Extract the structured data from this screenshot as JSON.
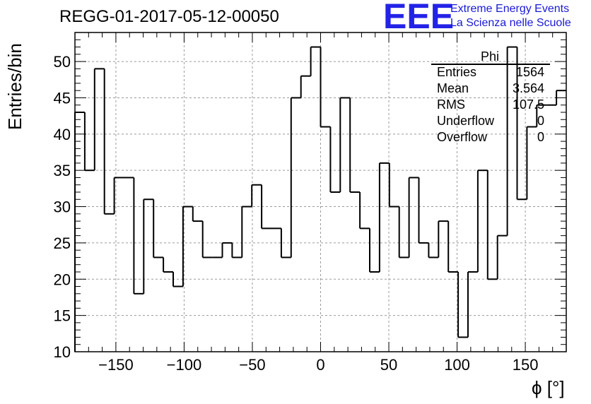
{
  "header": {
    "title": "REGG-01-2017-05-12-00050",
    "logo_text": "EEE",
    "logo_line1": "Extreme Energy Events",
    "logo_line2": "La Scienza nelle Scuole"
  },
  "stats_box": {
    "name": "Phi",
    "rows": [
      {
        "label": "Entries",
        "value": "1564"
      },
      {
        "label": "Mean",
        "value": "3.564"
      },
      {
        "label": "RMS",
        "value": "107.5"
      },
      {
        "label": "Underflow",
        "value": "0"
      },
      {
        "label": "Overflow",
        "value": "0"
      }
    ]
  },
  "chart_data": {
    "type": "bar",
    "style": "step-histogram",
    "title": "REGG-01-2017-05-12-00050",
    "xlabel": "ϕ [°]",
    "ylabel": "Entries/bin",
    "xlim": [
      -180,
      180
    ],
    "ylim": [
      10,
      54
    ],
    "grid": true,
    "x_ticks": [
      -150,
      -100,
      -50,
      0,
      50,
      100,
      150
    ],
    "x_tick_labels": [
      "−150",
      "−100",
      "−50",
      "0",
      "50",
      "100",
      "150"
    ],
    "y_ticks": [
      10,
      15,
      20,
      25,
      30,
      35,
      40,
      45,
      50
    ],
    "y_tick_labels": [
      "10",
      "15",
      "20",
      "25",
      "30",
      "35",
      "40",
      "45",
      "50"
    ],
    "bin_width": 7.2,
    "values": [
      43,
      35,
      49,
      29,
      34,
      34,
      18,
      31,
      23,
      21,
      19,
      30,
      28,
      23,
      23,
      25,
      23,
      30,
      33,
      27,
      27,
      23,
      45,
      48,
      52,
      41,
      32,
      45,
      32,
      27,
      21,
      36,
      30,
      23,
      34,
      25,
      23,
      28,
      21,
      12,
      21,
      35,
      20,
      26,
      52,
      31,
      41,
      44,
      44,
      46
    ],
    "colors": {
      "line": "#000000",
      "grid": "#9a9a9a"
    }
  }
}
